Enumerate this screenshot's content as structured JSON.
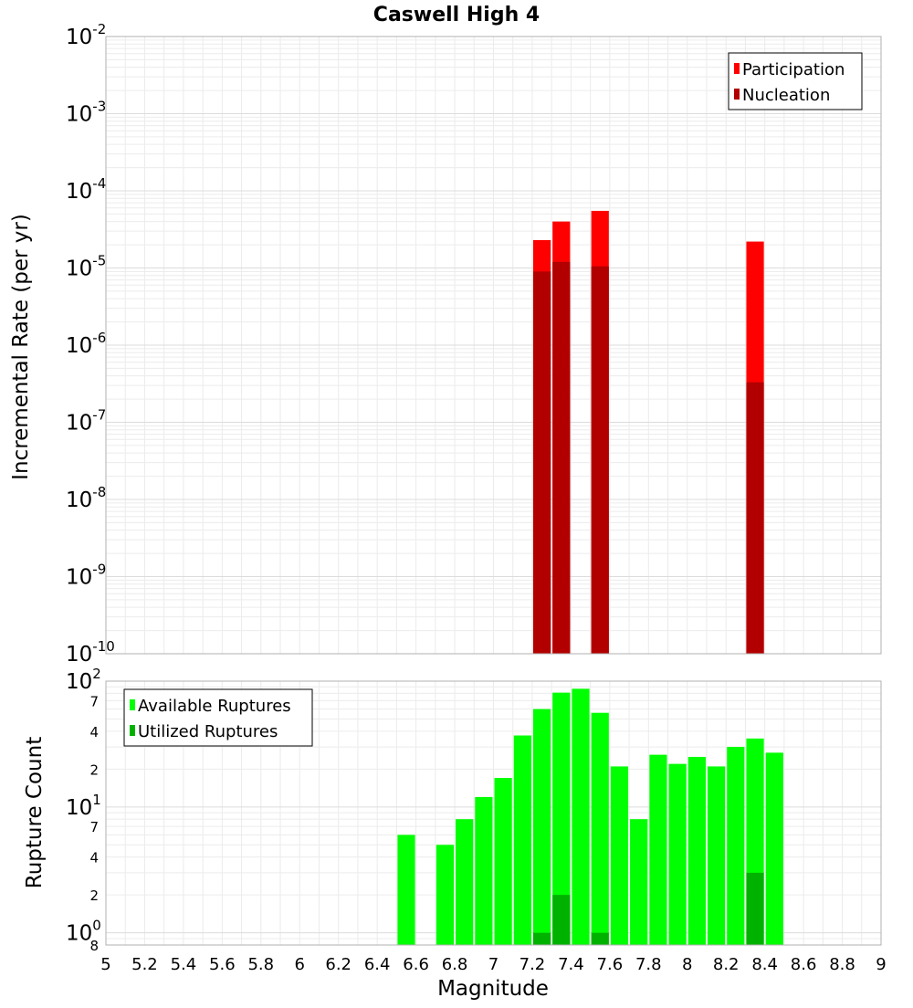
{
  "chart_data": [
    {
      "type": "bar",
      "title": "Caswell High 4",
      "xlabel": "Magnitude",
      "ylabel": "Incremental Rate (per yr)",
      "yscale": "log",
      "ylim": [
        1e-10,
        0.01
      ],
      "xlim": [
        5,
        9
      ],
      "bar_width": 0.1,
      "y_ticks": [
        {
          "base": "10",
          "exp": "-10"
        },
        {
          "base": "10",
          "exp": "-9"
        },
        {
          "base": "10",
          "exp": "-8"
        },
        {
          "base": "10",
          "exp": "-7"
        },
        {
          "base": "10",
          "exp": "-6"
        },
        {
          "base": "10",
          "exp": "-5"
        },
        {
          "base": "10",
          "exp": "-4"
        },
        {
          "base": "10",
          "exp": "-3"
        },
        {
          "base": "10",
          "exp": "-2"
        }
      ],
      "legend": {
        "position": "top-right"
      },
      "series": [
        {
          "name": "Participation",
          "color": "#ff0000",
          "x": [
            7.25,
            7.35,
            7.55,
            8.35
          ],
          "values": [
            2.3e-05,
            4e-05,
            5.5e-05,
            2.2e-05
          ]
        },
        {
          "name": "Nucleation",
          "color": "#b20000",
          "x": [
            7.25,
            7.35,
            7.55,
            8.35
          ],
          "values": [
            9e-06,
            1.2e-05,
            1.05e-05,
            3.3e-07
          ]
        }
      ]
    },
    {
      "type": "bar",
      "xlabel": "Magnitude",
      "ylabel": "Rupture Count",
      "yscale": "log",
      "ylim": [
        0.8,
        100
      ],
      "xlim": [
        5,
        9
      ],
      "bar_width": 0.1,
      "x_ticks": [
        "5",
        "5.2",
        "5.4",
        "5.6",
        "5.8",
        "6",
        "6.2",
        "6.4",
        "6.6",
        "6.8",
        "7",
        "7.2",
        "7.4",
        "7.6",
        "7.8",
        "8",
        "8.2",
        "8.4",
        "8.6",
        "8.8",
        "9"
      ],
      "y_major_ticks": [
        {
          "value": 1,
          "base": "10",
          "exp": "0"
        },
        {
          "value": 10,
          "base": "10",
          "exp": "1"
        },
        {
          "value": 100,
          "base": "10",
          "exp": "2"
        }
      ],
      "y_minor_labels": [
        {
          "value": 0.8,
          "label": "8"
        },
        {
          "value": 2,
          "label": "2"
        },
        {
          "value": 4,
          "label": "4"
        },
        {
          "value": 7,
          "label": "7"
        },
        {
          "value": 20,
          "label": "2"
        },
        {
          "value": 40,
          "label": "4"
        },
        {
          "value": 70,
          "label": "7"
        }
      ],
      "legend": {
        "position": "top-left"
      },
      "series": [
        {
          "name": "Available Ruptures",
          "color": "#00ff00",
          "x": [
            6.55,
            6.75,
            6.85,
            6.95,
            7.05,
            7.15,
            7.25,
            7.35,
            7.45,
            7.55,
            7.65,
            7.75,
            7.85,
            7.95,
            8.05,
            8.15,
            8.25,
            8.35,
            8.45
          ],
          "values": [
            6,
            5,
            8,
            12,
            17,
            37,
            60,
            81,
            87,
            56,
            21,
            8,
            26,
            22,
            25,
            21,
            30,
            35,
            27
          ]
        },
        {
          "name": "Utilized Ruptures",
          "color": "#00b200",
          "x": [
            7.25,
            7.35,
            7.55,
            8.35
          ],
          "values": [
            1,
            2,
            1,
            3
          ]
        }
      ]
    }
  ]
}
